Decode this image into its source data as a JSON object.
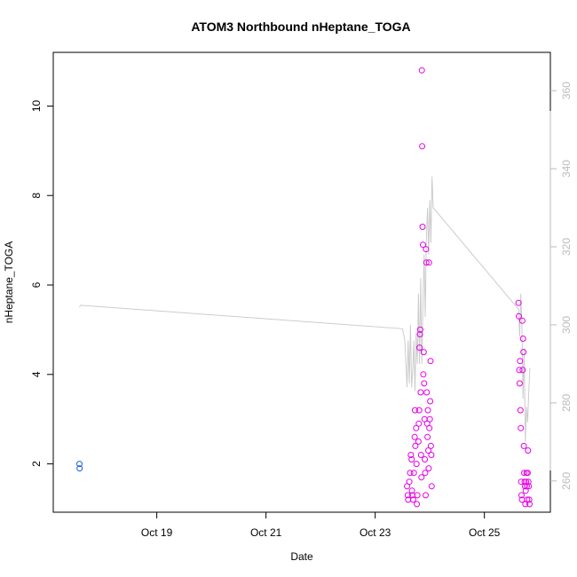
{
  "chart_data": {
    "type": "scatter",
    "title": "ATOM3 Northbound nHeptane_TOGA",
    "xlabel": "Date",
    "ylabel": "nHeptane_TOGA",
    "x_ticks": [
      "Oct 19",
      "Oct 21",
      "Oct 23",
      "Oct 25"
    ],
    "y_ticks": [
      "2",
      "4",
      "6",
      "8",
      "10"
    ],
    "y2_ticks": [
      "260",
      "280",
      "300",
      "320",
      "340",
      "360"
    ],
    "grid": false,
    "legend": "none",
    "colors": {
      "early": "#1f5fd6",
      "late": "#e600e6",
      "secondary_line": "#cccccc",
      "right_axis": "#bbbbbb"
    },
    "x_domain": [
      "2017-10-17 02:30",
      "2017-10-26 05:00"
    ],
    "y_domain": [
      0.92,
      11.2
    ],
    "y2_domain": [
      252,
      369.8
    ],
    "series": [
      {
        "marker": "circle-open",
        "color": "#1f5fd6",
        "points": [
          [
            "2017-10-17 14:00",
            2.0
          ],
          [
            "2017-10-17 14:05",
            1.9
          ]
        ]
      },
      {
        "marker": "circle-open",
        "color": "#e600e6",
        "points": [
          [
            "2017-10-23 14:00",
            1.5
          ],
          [
            "2017-10-23 14:20",
            1.3
          ],
          [
            "2017-10-23 14:30",
            1.2
          ],
          [
            "2017-10-23 15:00",
            1.6
          ],
          [
            "2017-10-23 15:20",
            1.8
          ],
          [
            "2017-10-23 15:40",
            2.2
          ],
          [
            "2017-10-23 16:00",
            2.1
          ],
          [
            "2017-10-23 16:10",
            1.4
          ],
          [
            "2017-10-23 16:20",
            1.3
          ],
          [
            "2017-10-23 16:40",
            1.2
          ],
          [
            "2017-10-23 17:00",
            1.8
          ],
          [
            "2017-10-23 17:20",
            2.6
          ],
          [
            "2017-10-23 17:30",
            3.2
          ],
          [
            "2017-10-23 17:40",
            2.4
          ],
          [
            "2017-10-23 18:00",
            2.8
          ],
          [
            "2017-10-23 18:10",
            2.0
          ],
          [
            "2017-10-23 18:20",
            1.1
          ],
          [
            "2017-10-23 18:30",
            1.3
          ],
          [
            "2017-10-23 19:00",
            2.5
          ],
          [
            "2017-10-23 19:10",
            2.9
          ],
          [
            "2017-10-23 19:20",
            3.2
          ],
          [
            "2017-10-23 19:30",
            4.6
          ],
          [
            "2017-10-23 19:40",
            4.9
          ],
          [
            "2017-10-23 19:50",
            5.0
          ],
          [
            "2017-10-23 20:00",
            3.6
          ],
          [
            "2017-10-23 20:10",
            2.2
          ],
          [
            "2017-10-23 20:20",
            1.7
          ],
          [
            "2017-10-23 20:30",
            10.8
          ],
          [
            "2017-10-23 20:40",
            9.1
          ],
          [
            "2017-10-23 20:50",
            7.3
          ],
          [
            "2017-10-23 21:00",
            6.9
          ],
          [
            "2017-10-23 21:10",
            4.0
          ],
          [
            "2017-10-23 21:20",
            4.5
          ],
          [
            "2017-10-23 21:30",
            3.8
          ],
          [
            "2017-10-23 21:40",
            3.0
          ],
          [
            "2017-10-23 21:50",
            2.1
          ],
          [
            "2017-10-23 22:00",
            1.8
          ],
          [
            "2017-10-23 22:10",
            1.3
          ],
          [
            "2017-10-23 22:20",
            6.8
          ],
          [
            "2017-10-23 22:30",
            6.5
          ],
          [
            "2017-10-23 22:40",
            3.6
          ],
          [
            "2017-10-23 22:50",
            2.9
          ],
          [
            "2017-10-23 23:00",
            2.6
          ],
          [
            "2017-10-23 23:10",
            3.2
          ],
          [
            "2017-10-23 23:20",
            2.3
          ],
          [
            "2017-10-23 23:30",
            1.9
          ],
          [
            "2017-10-23 23:40",
            6.5
          ],
          [
            "2017-10-23 23:50",
            2.8
          ],
          [
            "2017-10-24 00:00",
            3.0
          ],
          [
            "2017-10-24 00:10",
            3.4
          ],
          [
            "2017-10-24 00:20",
            4.3
          ],
          [
            "2017-10-24 00:30",
            2.4
          ],
          [
            "2017-10-24 00:40",
            2.2
          ],
          [
            "2017-10-24 00:50",
            1.5
          ],
          [
            "2017-10-25 15:00",
            5.6
          ],
          [
            "2017-10-25 15:10",
            5.3
          ],
          [
            "2017-10-25 15:20",
            4.1
          ],
          [
            "2017-10-25 15:30",
            3.8
          ],
          [
            "2017-10-25 15:40",
            4.3
          ],
          [
            "2017-10-25 15:50",
            3.2
          ],
          [
            "2017-10-25 16:00",
            2.8
          ],
          [
            "2017-10-25 16:10",
            1.6
          ],
          [
            "2017-10-25 16:20",
            1.3
          ],
          [
            "2017-10-25 16:30",
            1.2
          ],
          [
            "2017-10-25 16:40",
            5.2
          ],
          [
            "2017-10-25 16:50",
            4.1
          ],
          [
            "2017-10-25 17:00",
            4.8
          ],
          [
            "2017-10-25 17:10",
            4.5
          ],
          [
            "2017-10-25 17:20",
            2.4
          ],
          [
            "2017-10-25 17:30",
            1.8
          ],
          [
            "2017-10-25 17:40",
            1.6
          ],
          [
            "2017-10-25 17:50",
            1.5
          ],
          [
            "2017-10-25 18:00",
            1.1
          ],
          [
            "2017-10-25 18:10",
            1.4
          ],
          [
            "2017-10-25 18:20",
            1.6
          ],
          [
            "2017-10-25 18:30",
            1.8
          ],
          [
            "2017-10-25 18:40",
            1.5
          ],
          [
            "2017-10-25 18:50",
            1.2
          ],
          [
            "2017-10-25 19:00",
            1.8
          ],
          [
            "2017-10-25 19:10",
            2.3
          ],
          [
            "2017-10-25 19:20",
            1.6
          ],
          [
            "2017-10-25 19:30",
            1.5
          ],
          [
            "2017-10-25 19:40",
            1.2
          ],
          [
            "2017-10-25 19:50",
            1.1
          ]
        ]
      }
    ],
    "secondary_line": {
      "axis": "right",
      "color": "#cccccc",
      "points": [
        [
          "2017-10-17 14:00",
          304.5
        ],
        [
          "2017-10-17 14:30",
          305.0
        ],
        [
          "2017-10-23 12:00",
          299.0
        ],
        [
          "2017-10-23 13:00",
          296.0
        ],
        [
          "2017-10-23 13:30",
          290.0
        ],
        [
          "2017-10-23 14:00",
          284.0
        ],
        [
          "2017-10-23 14:30",
          296.0
        ],
        [
          "2017-10-23 15:00",
          285.0
        ],
        [
          "2017-10-23 15:30",
          300.0
        ],
        [
          "2017-10-23 16:00",
          284.0
        ],
        [
          "2017-10-23 16:30",
          288.0
        ],
        [
          "2017-10-23 17:00",
          296.0
        ],
        [
          "2017-10-23 17:30",
          283.0
        ],
        [
          "2017-10-23 18:00",
          298.0
        ],
        [
          "2017-10-23 18:30",
          290.0
        ],
        [
          "2017-10-23 19:00",
          308.0
        ],
        [
          "2017-10-23 19:30",
          290.0
        ],
        [
          "2017-10-23 20:00",
          312.0
        ],
        [
          "2017-10-23 20:30",
          290.0
        ],
        [
          "2017-10-23 21:00",
          306.0
        ],
        [
          "2017-10-23 21:30",
          318.0
        ],
        [
          "2017-10-23 22:00",
          302.0
        ],
        [
          "2017-10-23 22:30",
          322.0
        ],
        [
          "2017-10-23 23:00",
          330.0
        ],
        [
          "2017-10-23 23:30",
          318.0
        ],
        [
          "2017-10-24 00:00",
          332.0
        ],
        [
          "2017-10-24 00:30",
          321.0
        ],
        [
          "2017-10-24 01:00",
          338.0
        ],
        [
          "2017-10-24 01:30",
          330.0
        ],
        [
          "2017-10-25 15:00",
          304.0
        ],
        [
          "2017-10-25 15:30",
          297.0
        ],
        [
          "2017-10-25 16:00",
          308.0
        ],
        [
          "2017-10-25 16:30",
          299.0
        ],
        [
          "2017-10-25 17:00",
          281.0
        ],
        [
          "2017-10-25 17:30",
          294.0
        ],
        [
          "2017-10-25 18:00",
          270.0
        ],
        [
          "2017-10-25 18:30",
          279.0
        ],
        [
          "2017-10-25 19:00",
          275.0
        ],
        [
          "2017-10-25 19:30",
          283.0
        ],
        [
          "2017-10-25 20:00",
          289.0
        ]
      ]
    }
  }
}
